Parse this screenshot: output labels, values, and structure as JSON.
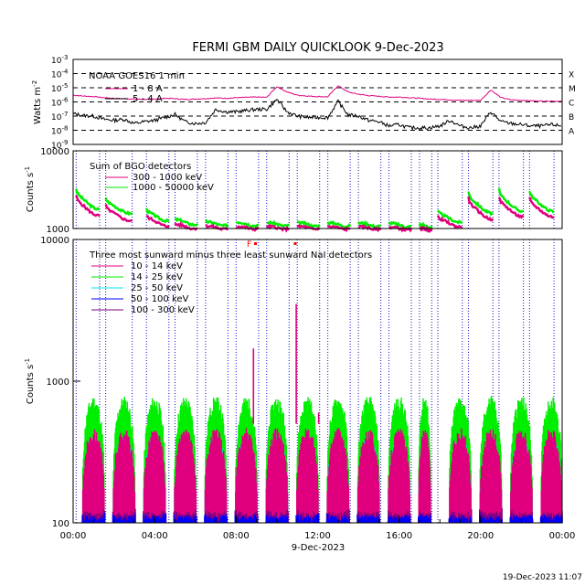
{
  "title": "FERMI GBM DAILY QUICKLOOK   9-Dec-2023",
  "footer_timestamp": "19-Dec-2023 11:07",
  "x_axis": {
    "date_label": "9-Dec-2023",
    "tick_labels": [
      "00:00",
      "04:00",
      "08:00",
      "12:00",
      "16:00",
      "20:00",
      "00:00"
    ],
    "range_hours": [
      0,
      24
    ]
  },
  "colors": {
    "goes_long": "#e0007f",
    "goes_short": "#000000",
    "bgo_low": "#e0007f",
    "bgo_high": "#00ee00",
    "nai_10_14": "#e0007f",
    "nai_14_25": "#00ee00",
    "nai_25_50": "#00e5e5",
    "nai_50_100": "#0000ff",
    "nai_100_300": "#800080",
    "orbit_lines": "#1010d0",
    "flare_markers": "#ff0000"
  },
  "chart_data": [
    {
      "type": "line",
      "panel": "goes",
      "title": "NOAA GOES16 1 min",
      "ylabel": "Watts m^-2",
      "ylim": [
        1e-09,
        0.001
      ],
      "y_scale": "log",
      "y_tick_exponents": [
        -9,
        -8,
        -7,
        -6,
        -5,
        -4,
        -3
      ],
      "class_levels": [
        {
          "label": "X",
          "value": 0.0001
        },
        {
          "label": "M",
          "value": 1e-05
        },
        {
          "label": "C",
          "value": 1e-06
        },
        {
          "label": "B",
          "value": 1e-07
        },
        {
          "label": "A",
          "value": 1e-08
        }
      ],
      "series": [
        {
          "name": "1 - 8 A",
          "x": [
            0,
            0.5,
            1,
            1.5,
            2,
            2.5,
            3,
            3.5,
            4,
            4.5,
            5,
            5.5,
            6,
            6.5,
            7,
            7.5,
            8,
            8.5,
            9,
            9.5,
            10,
            10.5,
            11,
            11.5,
            12,
            12.5,
            13,
            13.5,
            14,
            14.5,
            15,
            15.5,
            16,
            16.5,
            17,
            17.5,
            18,
            18.5,
            19,
            19.5,
            20,
            20.5,
            21,
            21.5,
            22,
            22.5,
            23,
            23.5,
            24
          ],
          "values": [
            3e-06,
            2.6e-06,
            2.4e-06,
            2e-06,
            1.8e-06,
            1.7e-06,
            1.6e-06,
            1.5e-06,
            1.6e-06,
            1.8e-06,
            1.7e-06,
            1.5e-06,
            1.6e-06,
            1.7e-06,
            1.9e-06,
            1.8e-06,
            2e-06,
            2.1e-06,
            2.2e-06,
            2.1e-06,
            1.2e-05,
            5e-06,
            3e-06,
            2.6e-06,
            2.4e-06,
            2.3e-06,
            1.4e-05,
            5e-06,
            3.5e-06,
            2.8e-06,
            2.5e-06,
            2.2e-06,
            2.2e-06,
            2e-06,
            1.8e-06,
            1.6e-06,
            1.5e-06,
            1.4e-06,
            1.3e-06,
            1.3e-06,
            1.3e-06,
            7e-06,
            2e-06,
            1.4e-06,
            1.3e-06,
            1.2e-06,
            1.15e-06,
            1.15e-06,
            1.1e-06
          ]
        },
        {
          "name": "5 - 4 A",
          "x": [
            0,
            0.5,
            1,
            1.5,
            2,
            2.5,
            3,
            3.5,
            4,
            4.5,
            5,
            5.5,
            6,
            6.5,
            7,
            7.5,
            8,
            8.5,
            9,
            9.5,
            10,
            10.5,
            11,
            11.5,
            12,
            12.5,
            13,
            13.5,
            14,
            14.5,
            15,
            15.5,
            16,
            16.5,
            17,
            17.5,
            18,
            18.5,
            19,
            19.5,
            20,
            20.5,
            21,
            21.5,
            22,
            22.5,
            23,
            23.5,
            24
          ],
          "values": [
            1.5e-07,
            1.1e-07,
            1e-07,
            6e-08,
            5e-08,
            6e-08,
            3e-08,
            4e-08,
            5e-08,
            8e-08,
            1.3e-07,
            4e-08,
            3e-08,
            3.5e-08,
            3e-07,
            2e-07,
            2e-07,
            2.5e-07,
            3e-07,
            3e-07,
            1.5e-06,
            2e-07,
            1e-07,
            8e-08,
            8e-08,
            8e-08,
            1.1e-06,
            1.2e-07,
            1e-07,
            5e-08,
            4e-08,
            2e-08,
            2.5e-08,
            1.5e-08,
            1.5e-08,
            1.5e-08,
            2e-08,
            5e-08,
            2e-08,
            1.5e-08,
            2e-08,
            2e-07,
            4e-08,
            3e-08,
            2.5e-08,
            2e-08,
            2e-08,
            2.5e-08,
            2e-08
          ]
        }
      ]
    },
    {
      "type": "line",
      "panel": "bgo",
      "title": "Sum of BGO detectors",
      "ylabel": "Counts s^-1",
      "ylim": [
        1000,
        10000
      ],
      "y_scale": "log",
      "y_tick_labels": [
        "10000",
        "1000"
      ],
      "orbit_segments": [
        {
          "start": 0.15,
          "end": 1.3
        },
        {
          "start": 1.6,
          "end": 2.9
        },
        {
          "start": 3.6,
          "end": 4.7
        },
        {
          "start": 5.0,
          "end": 6.1
        },
        {
          "start": 6.5,
          "end": 7.6
        },
        {
          "start": 8.0,
          "end": 9.1
        },
        {
          "start": 9.5,
          "end": 10.6
        },
        {
          "start": 11.0,
          "end": 12.1
        },
        {
          "start": 12.5,
          "end": 13.6
        },
        {
          "start": 14.0,
          "end": 15.1
        },
        {
          "start": 15.5,
          "end": 16.6
        },
        {
          "start": 17.0,
          "end": 17.6
        },
        {
          "start": 17.9,
          "end": 19.1
        },
        {
          "start": 19.4,
          "end": 20.6
        },
        {
          "start": 20.9,
          "end": 22.1
        },
        {
          "start": 22.4,
          "end": 23.6
        }
      ],
      "series": [
        {
          "name": "300 - 1000 keV",
          "segment_start": [
            2700,
            2000,
            1500,
            1150,
            1080,
            1060,
            1050,
            1060,
            1050,
            1050,
            1040,
            1000,
            1450,
            2500,
            2600,
            2500
          ],
          "segment_end": [
            1450,
            1250,
            1080,
            1010,
            1000,
            1000,
            1000,
            1000,
            1000,
            990,
            980,
            970,
            1050,
            1300,
            1400,
            1400
          ]
        },
        {
          "name": "1000 - 50000 keV",
          "segment_start": [
            3300,
            2500,
            1800,
            1350,
            1250,
            1230,
            1200,
            1200,
            1200,
            1190,
            1180,
            1100,
            1700,
            3000,
            3200,
            3100
          ],
          "segment_end": [
            1750,
            1550,
            1250,
            1130,
            1100,
            1100,
            1100,
            1090,
            1090,
            1080,
            1070,
            1050,
            1200,
            1550,
            1650,
            1650
          ]
        }
      ]
    },
    {
      "type": "area",
      "panel": "nai",
      "title": "Three most sunward minus three least sunward NaI detectors",
      "ylabel": "Counts s^-1",
      "ylim": [
        100,
        10000
      ],
      "y_scale": "log",
      "y_tick_labels": [
        "10000",
        "1000",
        "100"
      ],
      "flare_markers": [
        {
          "label": "F",
          "x": 8.7
        },
        {
          "label": "",
          "x": 8.95
        },
        {
          "label": "",
          "x": 10.9
        }
      ],
      "sun_segments": [
        {
          "start": 0.45,
          "end": 1.55
        },
        {
          "start": 1.95,
          "end": 3.05
        },
        {
          "start": 3.45,
          "end": 4.55
        },
        {
          "start": 4.95,
          "end": 6.05
        },
        {
          "start": 6.45,
          "end": 7.55
        },
        {
          "start": 7.95,
          "end": 9.05
        },
        {
          "start": 9.45,
          "end": 10.55
        },
        {
          "start": 10.95,
          "end": 12.05
        },
        {
          "start": 12.45,
          "end": 13.55
        },
        {
          "start": 13.95,
          "end": 15.05
        },
        {
          "start": 15.45,
          "end": 16.55
        },
        {
          "start": 16.95,
          "end": 17.55
        },
        {
          "start": 18.45,
          "end": 19.55
        },
        {
          "start": 19.95,
          "end": 21.05
        },
        {
          "start": 21.45,
          "end": 22.55
        },
        {
          "start": 22.95,
          "end": 24.0
        }
      ],
      "series": [
        {
          "name": "10 - 14 keV",
          "peak": 420
        },
        {
          "name": "14 - 25 keV",
          "peak": 700
        },
        {
          "name": "25 - 50 keV",
          "peak": 380
        },
        {
          "name": "50 - 100 keV",
          "peak": 120
        },
        {
          "name": "100 - 300 keV",
          "peak": 130
        }
      ],
      "spikes": [
        {
          "x": 8.85,
          "value": 1700
        },
        {
          "x": 10.95,
          "value": 3500
        },
        {
          "x": 12.05,
          "value": 600
        }
      ]
    }
  ]
}
